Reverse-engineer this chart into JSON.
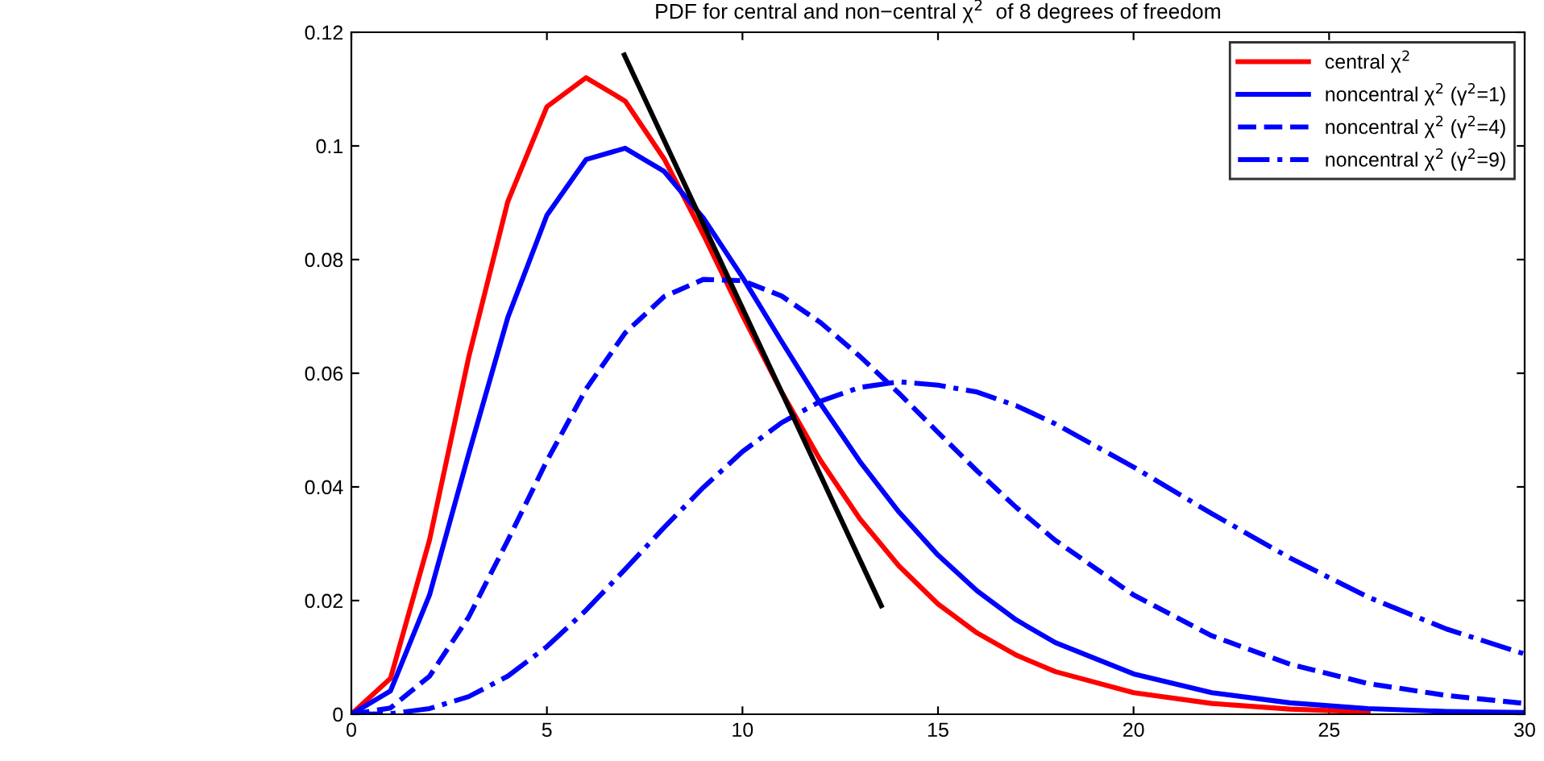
{
  "chart_data": {
    "type": "line",
    "title": "PDF for central and non−central χ$^{2}$  of 8 degrees of freedom",
    "x": [
      0,
      1,
      2,
      3,
      4,
      5,
      6,
      7,
      8,
      9,
      10,
      11,
      12,
      13,
      14,
      15,
      16,
      17,
      18,
      20,
      22,
      24,
      26,
      28,
      30
    ],
    "series": [
      {
        "name": "central χ$^{2}$",
        "color": "#ff0000",
        "line_style": "solid",
        "values": [
          0,
          0.0063,
          0.0307,
          0.0628,
          0.0902,
          0.1069,
          0.112,
          0.1079,
          0.0977,
          0.0844,
          0.0702,
          0.0567,
          0.0446,
          0.0344,
          0.0261,
          0.0194,
          0.0143,
          0.0104,
          0.0075,
          0.0038,
          0.0019,
          0.0009,
          0.0004,
          null,
          null
        ]
      },
      {
        "name": "noncentral χ$^{2}$ (γ$^{2}$=1)",
        "color": "#0000ff",
        "line_style": "solid",
        "values": [
          0,
          0.0041,
          0.021,
          0.0458,
          0.0698,
          0.0878,
          0.0976,
          0.0996,
          0.0955,
          0.0873,
          0.0769,
          0.0656,
          0.0546,
          0.0445,
          0.0356,
          0.028,
          0.0217,
          0.0166,
          0.0126,
          0.0071,
          0.0038,
          0.002,
          0.001,
          0.0005,
          0.0003
        ]
      },
      {
        "name": "noncentral χ$^{2}$ (γ$^{2}$=4)",
        "color": "#0000ff",
        "line_style": "dashed",
        "values": [
          0,
          0.0011,
          0.0067,
          0.0171,
          0.0306,
          0.0446,
          0.0572,
          0.0671,
          0.0735,
          0.0765,
          0.0763,
          0.0736,
          0.0689,
          0.063,
          0.0565,
          0.0496,
          0.0428,
          0.0364,
          0.0306,
          0.021,
          0.0138,
          0.0088,
          0.0054,
          0.0033,
          0.0019
        ]
      },
      {
        "name": "noncentral χ$^{2}$ (γ$^{2}$=9)",
        "color": "#0000ff",
        "line_style": "dashdot",
        "values": [
          0,
          0.0001,
          0.001,
          0.0031,
          0.0067,
          0.0119,
          0.0183,
          0.0255,
          0.0329,
          0.0399,
          0.0462,
          0.0513,
          0.0551,
          0.0575,
          0.0585,
          0.0579,
          0.0567,
          0.0543,
          0.0511,
          0.0435,
          0.0353,
          0.0275,
          0.0206,
          0.015,
          0.0106
        ]
      },
      {
        "color": "#000000",
        "line_style": "solid",
        "x": [
          6.98,
          13.55
        ],
        "values": [
          0.116,
          0.0191
        ]
      }
    ],
    "xlim": [
      0,
      30
    ],
    "ylim": [
      0,
      0.12
    ],
    "xticks": [
      0,
      5,
      10,
      15,
      20,
      25,
      30
    ],
    "yticks": [
      0,
      0.02,
      0.04,
      0.06,
      0.08,
      0.1,
      0.12
    ],
    "grid": false,
    "legend": "top right",
    "marker": "none"
  }
}
